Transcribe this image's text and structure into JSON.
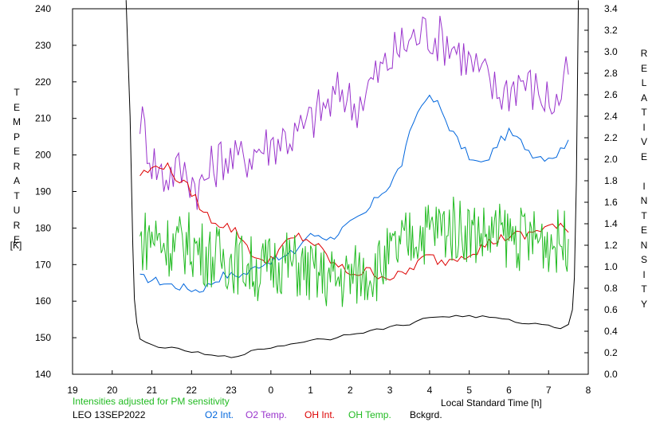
{
  "chart_data": {
    "type": "line",
    "left_axis": {
      "label_chars": [
        "T",
        "E",
        "M",
        "P",
        "E",
        "R",
        "A",
        "T",
        "U",
        "R",
        "E"
      ],
      "unit": "[K]",
      "ticks": [
        140,
        150,
        160,
        170,
        180,
        190,
        200,
        210,
        220,
        230,
        240
      ],
      "range": [
        140,
        240
      ]
    },
    "right_axis": {
      "label_chars": [
        "R",
        "E",
        "L",
        "A",
        "T",
        "I",
        "V",
        "E",
        "",
        "I",
        "N",
        "T",
        "E",
        "N",
        "S",
        "I",
        "T",
        "Y"
      ],
      "ticks": [
        "0.0",
        "0.2",
        "0.4",
        "0.6",
        "0.8",
        "1.0",
        "1.2",
        "1.4",
        "1.6",
        "1.8",
        "2.0",
        "2.2",
        "2.4",
        "2.6",
        "2.8",
        "3.0",
        "3.2",
        "3.4"
      ],
      "range": [
        0,
        3.4
      ]
    },
    "x_axis": {
      "label": "Local Standard Time [h]",
      "ticks": [
        "19",
        "20",
        "21",
        "22",
        "23",
        "0",
        "1",
        "2",
        "3",
        "4",
        "5",
        "6",
        "7",
        "8"
      ],
      "range": [
        19,
        32
      ]
    },
    "note": "Intensities adjusted for PM sensitivity",
    "station": "LEO 13SEP2022",
    "series": [
      {
        "name": "O2 Int.",
        "axis": "right",
        "color": "#0066dd",
        "points": [
          [
            20.7,
            0.9
          ],
          [
            21.0,
            0.88
          ],
          [
            21.3,
            0.85
          ],
          [
            21.6,
            0.82
          ],
          [
            21.9,
            0.8
          ],
          [
            22.2,
            0.78
          ],
          [
            22.5,
            0.85
          ],
          [
            22.8,
            0.92
          ],
          [
            23.1,
            0.92
          ],
          [
            23.4,
            0.94
          ],
          [
            23.7,
            1.02
          ],
          [
            24.0,
            1.06
          ],
          [
            24.3,
            1.08
          ],
          [
            24.6,
            1.14
          ],
          [
            24.9,
            1.28
          ],
          [
            25.2,
            1.3
          ],
          [
            25.5,
            1.26
          ],
          [
            25.8,
            1.35
          ],
          [
            26.1,
            1.42
          ],
          [
            26.4,
            1.5
          ],
          [
            26.7,
            1.66
          ],
          [
            27.0,
            1.76
          ],
          [
            27.3,
            1.96
          ],
          [
            27.6,
            2.36
          ],
          [
            27.9,
            2.58
          ],
          [
            28.2,
            2.52
          ],
          [
            28.5,
            2.3
          ],
          [
            28.8,
            2.12
          ],
          [
            29.1,
            1.98
          ],
          [
            29.4,
            1.96
          ],
          [
            29.7,
            2.14
          ],
          [
            30.0,
            2.25
          ],
          [
            30.3,
            2.16
          ],
          [
            30.6,
            2.05
          ],
          [
            30.9,
            2.02
          ],
          [
            31.2,
            2.04
          ],
          [
            31.5,
            2.18
          ]
        ]
      },
      {
        "name": "O2 Temp.",
        "axis": "left",
        "color": "#9933cc",
        "points": [
          [
            20.7,
            211
          ],
          [
            21.0,
            199
          ],
          [
            21.3,
            194
          ],
          [
            21.6,
            196
          ],
          [
            21.9,
            195
          ],
          [
            22.2,
            191
          ],
          [
            22.5,
            196
          ],
          [
            22.8,
            200
          ],
          [
            23.1,
            198
          ],
          [
            23.4,
            200
          ],
          [
            23.7,
            202
          ],
          [
            24.0,
            203
          ],
          [
            24.3,
            205
          ],
          [
            24.6,
            205
          ],
          [
            24.9,
            208
          ],
          [
            25.2,
            212
          ],
          [
            25.5,
            214
          ],
          [
            25.8,
            218
          ],
          [
            26.1,
            213
          ],
          [
            26.4,
            218
          ],
          [
            26.7,
            222
          ],
          [
            27.0,
            226
          ],
          [
            27.3,
            230
          ],
          [
            27.6,
            232
          ],
          [
            27.9,
            234
          ],
          [
            28.2,
            232
          ],
          [
            28.5,
            231
          ],
          [
            28.8,
            228
          ],
          [
            29.1,
            224
          ],
          [
            29.4,
            221
          ],
          [
            29.7,
            217
          ],
          [
            30.0,
            218
          ],
          [
            30.3,
            221
          ],
          [
            30.6,
            218
          ],
          [
            30.9,
            216
          ],
          [
            31.2,
            214
          ],
          [
            31.5,
            222
          ]
        ]
      },
      {
        "name": "OH Int.",
        "axis": "right",
        "color": "#dd0000",
        "points": [
          [
            20.7,
            1.86
          ],
          [
            21.0,
            1.9
          ],
          [
            21.2,
            1.96
          ],
          [
            21.4,
            1.92
          ],
          [
            21.7,
            1.8
          ],
          [
            22.0,
            1.7
          ],
          [
            22.3,
            1.5
          ],
          [
            22.6,
            1.42
          ],
          [
            22.9,
            1.38
          ],
          [
            23.2,
            1.3
          ],
          [
            23.5,
            1.14
          ],
          [
            23.8,
            1.02
          ],
          [
            24.1,
            1.12
          ],
          [
            24.4,
            1.22
          ],
          [
            24.7,
            1.28
          ],
          [
            25.0,
            1.24
          ],
          [
            25.3,
            1.14
          ],
          [
            25.6,
            1.02
          ],
          [
            25.9,
            0.96
          ],
          [
            26.2,
            0.94
          ],
          [
            26.5,
            0.96
          ],
          [
            26.8,
            0.92
          ],
          [
            27.1,
            0.9
          ],
          [
            27.4,
            0.94
          ],
          [
            27.7,
            1.04
          ],
          [
            28.0,
            1.1
          ],
          [
            28.3,
            1.04
          ],
          [
            28.6,
            1.08
          ],
          [
            28.9,
            1.12
          ],
          [
            29.2,
            1.16
          ],
          [
            29.5,
            1.22
          ],
          [
            29.8,
            1.26
          ],
          [
            30.1,
            1.3
          ],
          [
            30.4,
            1.28
          ],
          [
            30.7,
            1.34
          ],
          [
            31.0,
            1.38
          ],
          [
            31.3,
            1.36
          ],
          [
            31.5,
            1.32
          ]
        ]
      },
      {
        "name": "OH Temp.",
        "axis": "left",
        "color": "#22bb22",
        "points": [
          [
            20.7,
            176
          ],
          [
            21.0,
            178
          ],
          [
            21.3,
            176
          ],
          [
            21.6,
            175
          ],
          [
            21.9,
            176
          ],
          [
            22.2,
            174
          ],
          [
            22.5,
            172
          ],
          [
            22.8,
            172
          ],
          [
            23.1,
            171
          ],
          [
            23.4,
            170
          ],
          [
            23.7,
            168
          ],
          [
            24.0,
            170
          ],
          [
            24.3,
            171
          ],
          [
            24.6,
            170
          ],
          [
            24.9,
            168
          ],
          [
            25.2,
            167
          ],
          [
            25.5,
            166
          ],
          [
            25.8,
            166
          ],
          [
            26.1,
            167
          ],
          [
            26.4,
            168
          ],
          [
            26.7,
            169
          ],
          [
            27.0,
            172
          ],
          [
            27.3,
            175
          ],
          [
            27.6,
            178
          ],
          [
            27.9,
            179
          ],
          [
            28.2,
            180
          ],
          [
            28.5,
            180
          ],
          [
            28.8,
            180
          ],
          [
            29.1,
            179
          ],
          [
            29.4,
            178
          ],
          [
            29.7,
            178
          ],
          [
            30.0,
            178
          ],
          [
            30.3,
            177
          ],
          [
            30.6,
            177
          ],
          [
            30.9,
            177
          ],
          [
            31.2,
            176
          ],
          [
            31.5,
            177
          ]
        ]
      },
      {
        "name": "Bckgrd.",
        "axis": "right",
        "color": "#000000",
        "points": [
          [
            20.35,
            3.48
          ],
          [
            20.45,
            2.4
          ],
          [
            20.52,
            1.2
          ],
          [
            20.56,
            0.7
          ],
          [
            20.62,
            0.48
          ],
          [
            20.7,
            0.32
          ],
          [
            21.0,
            0.27
          ],
          [
            21.5,
            0.24
          ],
          [
            22.0,
            0.21
          ],
          [
            22.5,
            0.17
          ],
          [
            23.0,
            0.16
          ],
          [
            23.5,
            0.21
          ],
          [
            24.0,
            0.25
          ],
          [
            24.5,
            0.28
          ],
          [
            25.0,
            0.32
          ],
          [
            25.5,
            0.33
          ],
          [
            26.0,
            0.38
          ],
          [
            26.5,
            0.4
          ],
          [
            27.0,
            0.44
          ],
          [
            27.5,
            0.47
          ],
          [
            28.0,
            0.53
          ],
          [
            28.5,
            0.54
          ],
          [
            29.0,
            0.54
          ],
          [
            29.5,
            0.53
          ],
          [
            30.0,
            0.5
          ],
          [
            30.5,
            0.47
          ],
          [
            31.0,
            0.46
          ],
          [
            31.3,
            0.43
          ],
          [
            31.5,
            0.47
          ],
          [
            31.6,
            0.6
          ],
          [
            31.65,
            0.9
          ],
          [
            31.7,
            1.8
          ],
          [
            31.75,
            3.48
          ]
        ]
      }
    ]
  }
}
